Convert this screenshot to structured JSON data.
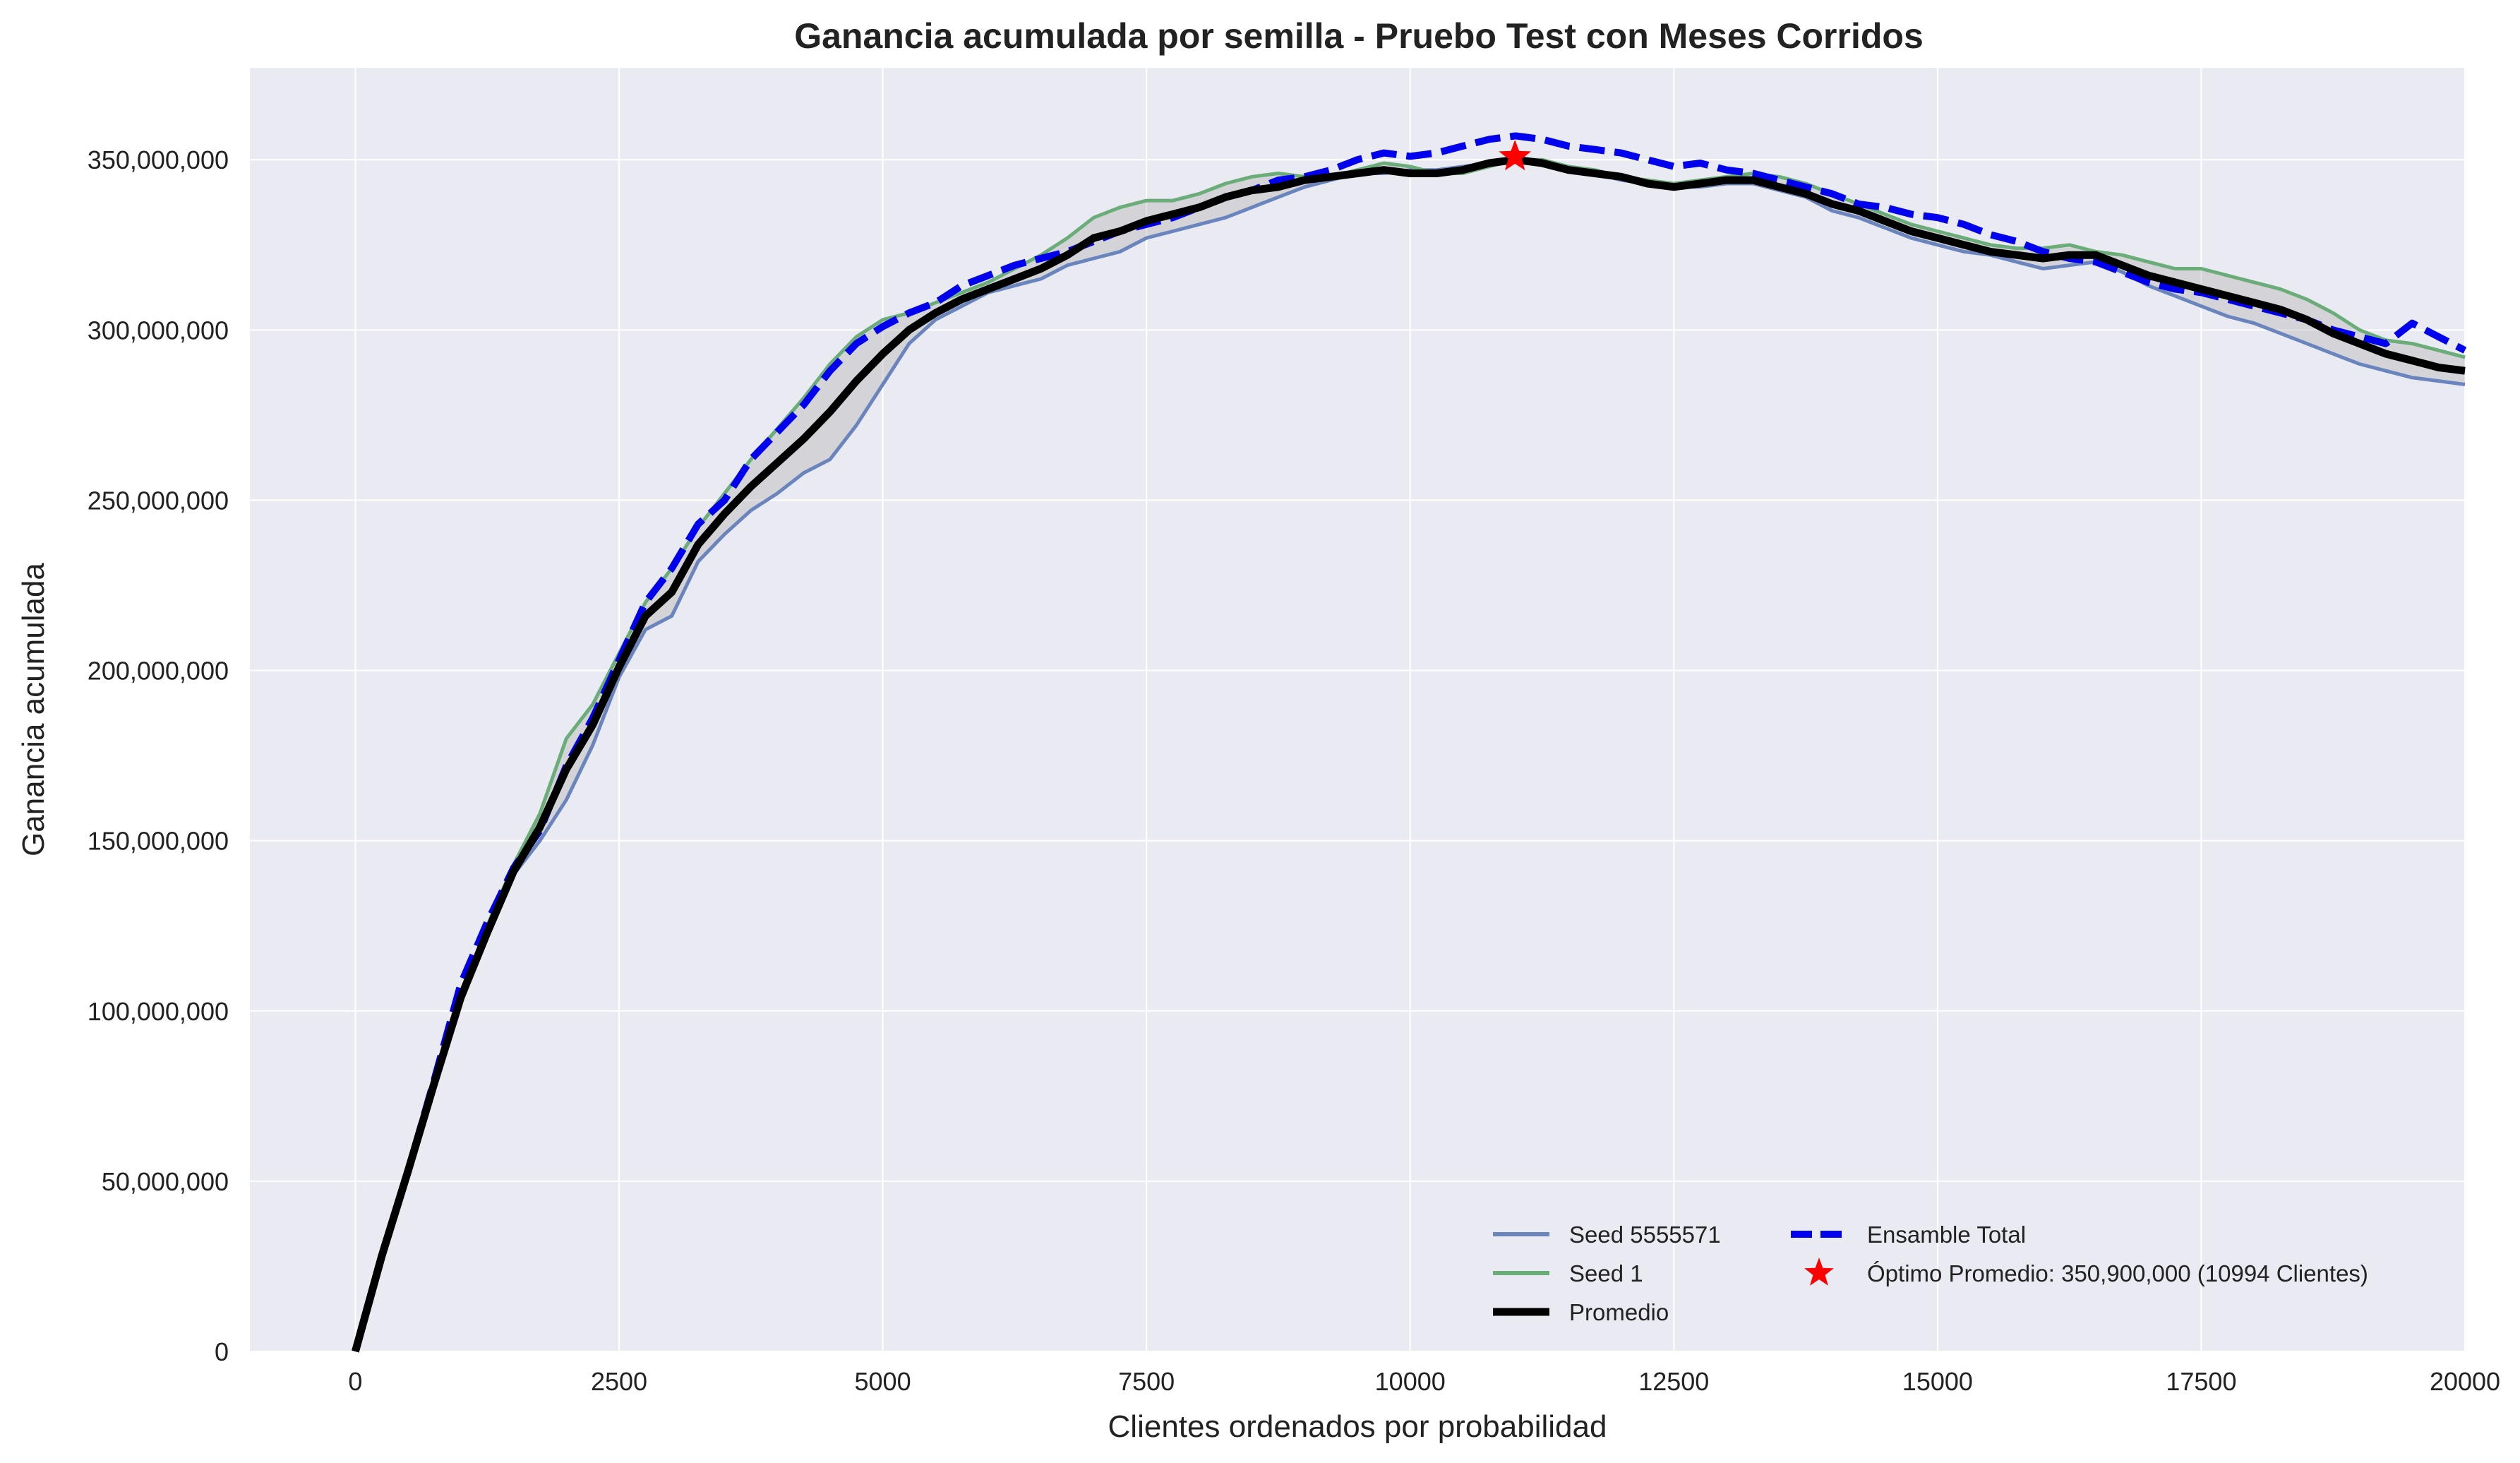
{
  "chart_data": {
    "type": "line",
    "title": "Ganancia acumulada por semilla - Pruebo Test con Meses Corridos",
    "xlabel": "Clientes ordenados por probabilidad",
    "ylabel": "Ganancia acumulada",
    "xlim": [
      -1000,
      20000
    ],
    "ylim": [
      0,
      377000000
    ],
    "x_ticks": [
      0,
      2500,
      5000,
      7500,
      10000,
      12500,
      15000,
      17500,
      20000
    ],
    "x_tick_labels": [
      "0",
      "2500",
      "5000",
      "7500",
      "10000",
      "12500",
      "15000",
      "17500",
      "20000"
    ],
    "y_ticks": [
      0,
      50000000,
      100000000,
      150000000,
      200000000,
      250000000,
      300000000,
      350000000
    ],
    "y_tick_labels": [
      "0",
      "50,000,000",
      "100,000,000",
      "150,000,000",
      "200,000,000",
      "250,000,000",
      "300,000,000",
      "350,000,000"
    ],
    "grid": true,
    "legend_position": "lower-right",
    "x": [
      0,
      250,
      500,
      750,
      1000,
      1250,
      1500,
      1750,
      2000,
      2250,
      2500,
      2750,
      3000,
      3250,
      3500,
      3750,
      4000,
      4250,
      4500,
      4750,
      5000,
      5250,
      5500,
      5750,
      6000,
      6250,
      6500,
      6750,
      7000,
      7250,
      7500,
      7750,
      8000,
      8250,
      8500,
      8750,
      9000,
      9250,
      9500,
      9750,
      10000,
      10250,
      10500,
      10750,
      11000,
      11250,
      11500,
      11750,
      12000,
      12250,
      12500,
      12750,
      13000,
      13250,
      13500,
      13750,
      14000,
      14250,
      14500,
      14750,
      15000,
      15250,
      15500,
      15750,
      16000,
      16250,
      16500,
      16750,
      17000,
      17250,
      17500,
      17750,
      18000,
      18250,
      18500,
      18750,
      19000,
      19250,
      19500,
      19750,
      20000
    ],
    "series": [
      {
        "name": "Seed 5555571",
        "color": "#6a85bd",
        "style": "solid",
        "values": [
          0,
          28000000,
          52000000,
          78000000,
          103000000,
          122000000,
          140000000,
          150000000,
          162000000,
          178000000,
          198000000,
          212000000,
          216000000,
          232000000,
          240000000,
          247000000,
          252000000,
          258000000,
          262000000,
          272000000,
          284000000,
          296000000,
          303000000,
          307000000,
          311000000,
          313000000,
          315000000,
          319000000,
          321000000,
          323000000,
          327000000,
          329000000,
          331000000,
          333000000,
          336000000,
          339000000,
          342000000,
          344000000,
          346000000,
          346000000,
          347000000,
          347000000,
          348000000,
          349000000,
          350000000,
          349000000,
          348000000,
          346000000,
          344000000,
          343000000,
          342000000,
          342000000,
          343000000,
          343000000,
          341000000,
          339000000,
          335000000,
          333000000,
          330000000,
          327000000,
          325000000,
          323000000,
          322000000,
          320000000,
          318000000,
          319000000,
          320000000,
          317000000,
          313000000,
          310000000,
          307000000,
          304000000,
          302000000,
          299000000,
          296000000,
          293000000,
          290000000,
          288000000,
          286000000,
          285000000,
          284000000
        ]
      },
      {
        "name": "Seed 1",
        "color": "#6aad79",
        "style": "solid",
        "values": [
          0,
          30000000,
          55000000,
          80000000,
          105000000,
          125000000,
          143000000,
          158000000,
          180000000,
          190000000,
          205000000,
          220000000,
          230000000,
          242000000,
          252000000,
          262000000,
          271000000,
          280000000,
          290000000,
          298000000,
          303000000,
          305000000,
          308000000,
          311000000,
          314000000,
          318000000,
          322000000,
          327000000,
          333000000,
          336000000,
          338000000,
          338000000,
          340000000,
          343000000,
          345000000,
          346000000,
          345000000,
          345000000,
          347000000,
          349000000,
          348000000,
          346000000,
          346000000,
          348000000,
          350000000,
          350000000,
          348000000,
          347000000,
          345000000,
          344000000,
          343000000,
          344000000,
          345000000,
          346000000,
          345000000,
          343000000,
          340000000,
          337000000,
          334000000,
          331000000,
          329000000,
          327000000,
          325000000,
          324000000,
          324000000,
          325000000,
          323000000,
          322000000,
          320000000,
          318000000,
          318000000,
          316000000,
          314000000,
          312000000,
          309000000,
          305000000,
          300000000,
          297000000,
          296000000,
          294000000,
          292000000
        ]
      },
      {
        "name": "Ensamble Total",
        "color": "#0000ee",
        "style": "dashed",
        "values": [
          0,
          28000000,
          53000000,
          80000000,
          108000000,
          126000000,
          142000000,
          153000000,
          172000000,
          186000000,
          203000000,
          220000000,
          230000000,
          243000000,
          250000000,
          262000000,
          270000000,
          278000000,
          288000000,
          296000000,
          301000000,
          305000000,
          308000000,
          313000000,
          316000000,
          319000000,
          321000000,
          323000000,
          326000000,
          329000000,
          331000000,
          333000000,
          336000000,
          339000000,
          341000000,
          344000000,
          345000000,
          347000000,
          350000000,
          352000000,
          351000000,
          352000000,
          354000000,
          356000000,
          357000000,
          356000000,
          354000000,
          353000000,
          352000000,
          350000000,
          348000000,
          349000000,
          347000000,
          346000000,
          344000000,
          342000000,
          340000000,
          337000000,
          336000000,
          334000000,
          333000000,
          331000000,
          328000000,
          326000000,
          323000000,
          321000000,
          320000000,
          317000000,
          314000000,
          312000000,
          311000000,
          309000000,
          307000000,
          305000000,
          303000000,
          300000000,
          298000000,
          296000000,
          302000000,
          298000000,
          294000000
        ]
      },
      {
        "name": "Promedio",
        "color": "#000000",
        "style": "solid",
        "values": [
          0,
          28000000,
          53000000,
          79000000,
          104000000,
          123000000,
          141000000,
          154000000,
          171000000,
          184000000,
          201000000,
          216000000,
          223000000,
          237000000,
          246000000,
          254000000,
          261000000,
          268000000,
          276000000,
          285000000,
          293000000,
          300000000,
          305000000,
          309000000,
          312000000,
          315000000,
          318000000,
          322000000,
          327000000,
          329000000,
          332000000,
          334000000,
          336000000,
          339000000,
          341000000,
          342000000,
          344000000,
          345000000,
          346000000,
          347000000,
          346000000,
          346000000,
          347000000,
          349000000,
          350000000,
          349000000,
          347000000,
          346000000,
          345000000,
          343000000,
          342000000,
          343000000,
          344000000,
          344000000,
          342000000,
          340000000,
          337000000,
          335000000,
          332000000,
          329000000,
          327000000,
          325000000,
          323000000,
          322000000,
          321000000,
          322000000,
          322000000,
          319000000,
          316000000,
          314000000,
          312000000,
          310000000,
          308000000,
          306000000,
          303000000,
          299000000,
          296000000,
          293000000,
          291000000,
          289000000,
          288000000
        ]
      }
    ],
    "band": {
      "color": "#a9a9a9",
      "lower_series": "Seed 5555571",
      "upper_series": "Seed 1"
    },
    "optimum": {
      "label": "Óptimo Promedio: 350,900,000 (10994 Clientes)",
      "x": 10994,
      "y": 350900000,
      "color": "#ff0000",
      "marker": "star"
    },
    "legend": [
      {
        "name": "Seed 5555571",
        "color": "#6a85bd",
        "style": "solid"
      },
      {
        "name": "Seed 1",
        "color": "#6aad79",
        "style": "solid"
      },
      {
        "name": "Promedio",
        "color": "#000000",
        "style": "solid-thick"
      },
      {
        "name": "Ensamble Total",
        "color": "#0000ee",
        "style": "dashed"
      },
      {
        "name": "Óptimo Promedio: 350,900,000 (10994 Clientes)",
        "color": "#ff0000",
        "style": "star"
      }
    ]
  }
}
